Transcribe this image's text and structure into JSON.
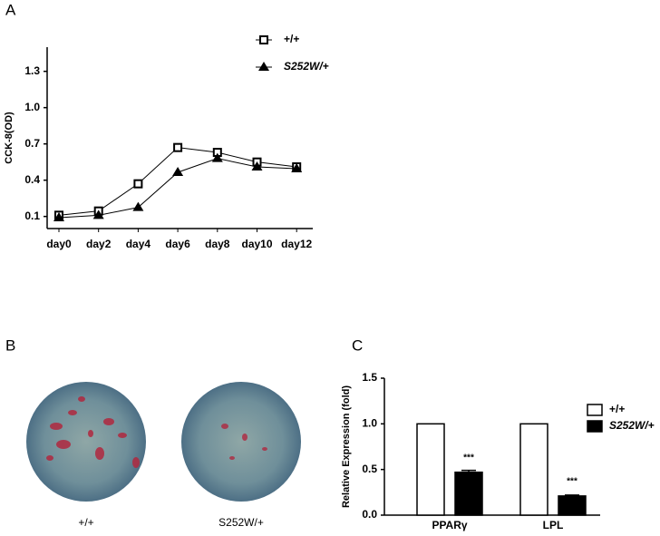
{
  "panel_labels": [
    "A",
    "B",
    "C"
  ],
  "images": [
    {
      "label": "+/+"
    },
    {
      "label": "S252W/+"
    }
  ],
  "chart_data": [
    {
      "type": "line",
      "y_label": "CCK-8(OD)",
      "categories": [
        "day0",
        "day2",
        "day4",
        "day6",
        "day8",
        "day10",
        "day12"
      ],
      "series": [
        {
          "name": "+/+",
          "color": "#000000",
          "marker": "square",
          "values": [
            0.11,
            0.145,
            0.37,
            0.67,
            0.63,
            0.55,
            0.51
          ]
        },
        {
          "name": "S252W/+",
          "color": "#000000",
          "marker": "triangle",
          "values": [
            0.09,
            0.11,
            0.175,
            0.465,
            0.58,
            0.51,
            0.495
          ]
        }
      ],
      "ylim": [
        0,
        1.5
      ],
      "yticks": [
        0.1,
        0.4,
        0.7,
        {
          "value": 1,
          "label": "1.0"
        },
        1.3
      ]
    },
    {
      "type": "bar",
      "y_label": "Relative Expression (fold)",
      "categories": [
        "PPARγ",
        "LPL"
      ],
      "series": [
        {
          "name": "+/+",
          "color": "#ffffff",
          "values": [
            1,
            1
          ]
        },
        {
          "name": "S252W/+",
          "color": "#000000",
          "values": [
            0.47,
            0.21
          ],
          "errors": [
            0.02,
            0.01
          ],
          "significance": [
            "***",
            "***"
          ]
        }
      ],
      "ylim": [
        0,
        1.5
      ],
      "yticks": [
        {
          "value": 0,
          "label": "0.0"
        },
        0.5,
        {
          "value": 1,
          "label": "1.0"
        },
        1.5
      ]
    }
  ]
}
